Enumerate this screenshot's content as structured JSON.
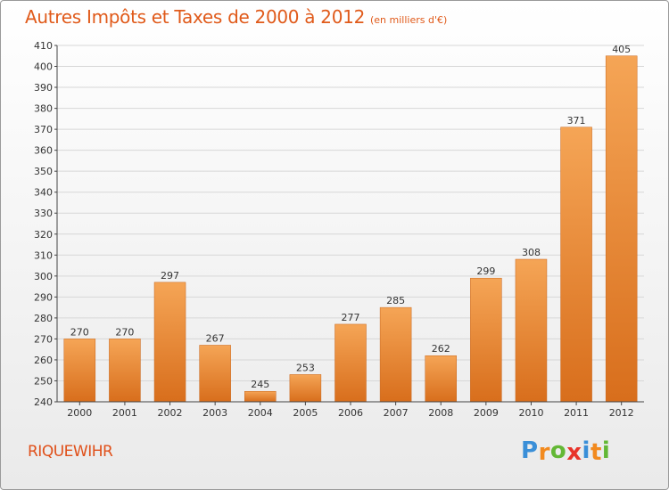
{
  "header": {
    "title": "Autres Impôts et Taxes de 2000 à 2012",
    "subtitle": "(en milliers d'€)"
  },
  "footer": {
    "city": "RIQUEWIHR",
    "logo_letters": [
      "P",
      "r",
      "o",
      "x",
      "i",
      "t",
      "i"
    ],
    "logo_colors": [
      "#3a8fd8",
      "#f28a1e",
      "#63b835",
      "#e8342a",
      "#3a8fd8",
      "#f28a1e",
      "#63b835"
    ]
  },
  "chart_data": {
    "type": "bar",
    "categories": [
      "2000",
      "2001",
      "2002",
      "2003",
      "2004",
      "2005",
      "2006",
      "2007",
      "2008",
      "2009",
      "2010",
      "2011",
      "2012"
    ],
    "values": [
      270,
      270,
      297,
      267,
      245,
      253,
      277,
      285,
      262,
      299,
      308,
      371,
      405
    ],
    "title": "Autres Impôts et Taxes de 2000 à 2012",
    "subtitle": "(en milliers d'€)",
    "xlabel": "",
    "ylabel": "",
    "ylim": [
      240,
      410
    ],
    "yticks": [
      240,
      250,
      260,
      270,
      280,
      290,
      300,
      310,
      320,
      330,
      340,
      350,
      360,
      370,
      380,
      390,
      400,
      410
    ],
    "grid": true,
    "legend": "none",
    "colors": {
      "bar_light": "#f5a556",
      "bar_dark": "#d86e1c",
      "grid": "#d7d7d7",
      "axis": "#444444"
    }
  }
}
